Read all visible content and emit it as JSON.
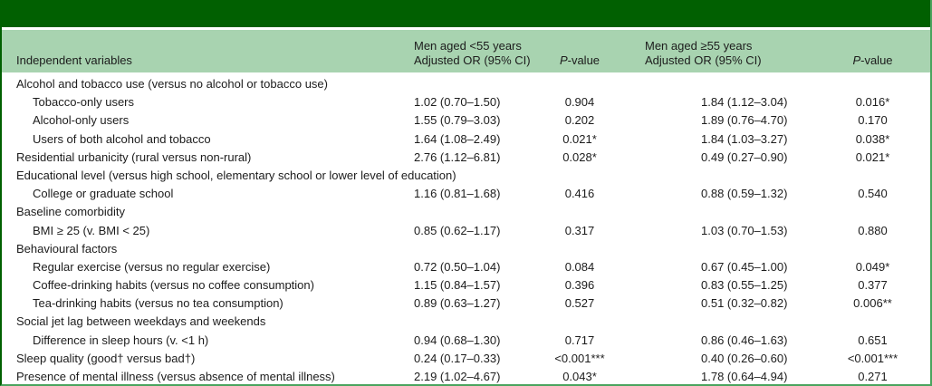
{
  "colors": {
    "dark_green": "#016001",
    "light_green": "#a8d3b0",
    "mid_green": "#4aa45e",
    "body_background": "#ffffff",
    "text": "#1c1c1c"
  },
  "table": {
    "header": {
      "independent_variables": "Independent variables",
      "group1_line1": "Men aged <55 years",
      "group1_line2": "Adjusted OR (95% CI)",
      "group2_line1": "Men aged ≥55 years",
      "group2_line2": "Adjusted OR (95% CI)",
      "pvalue_italic": "P",
      "pvalue_rest": "-value"
    },
    "rows": [
      {
        "label": "Alcohol and tobacco use (versus no alcohol or tobacco use)",
        "indent": false,
        "or1": "",
        "p1": "",
        "or2": "",
        "p2": ""
      },
      {
        "label": "Tobacco-only users",
        "indent": true,
        "or1": "1.02 (0.70–1.50)",
        "p1": "0.904",
        "or2": "1.84 (1.12–3.04)",
        "p2": "0.016*"
      },
      {
        "label": "Alcohol-only users",
        "indent": true,
        "or1": "1.55 (0.79–3.03)",
        "p1": "0.202",
        "or2": "1.89 (0.76–4.70)",
        "p2": "0.170"
      },
      {
        "label": "Users of both alcohol and tobacco",
        "indent": true,
        "or1": "1.64 (1.08–2.49)",
        "p1": "0.021*",
        "or2": "1.84 (1.03–3.27)",
        "p2": "0.038*"
      },
      {
        "label": "Residential urbanicity (rural versus non-rural)",
        "indent": false,
        "or1": "2.76 (1.12–6.81)",
        "p1": "0.028*",
        "or2": "0.49 (0.27–0.90)",
        "p2": "0.021*"
      },
      {
        "label": "Educational level (versus high school, elementary school or lower level of education)",
        "indent": false,
        "or1": "",
        "p1": "",
        "or2": "",
        "p2": ""
      },
      {
        "label": "College or graduate school",
        "indent": true,
        "or1": "1.16 (0.81–1.68)",
        "p1": "0.416",
        "or2": "0.88 (0.59–1.32)",
        "p2": "0.540"
      },
      {
        "label": "Baseline comorbidity",
        "indent": false,
        "or1": "",
        "p1": "",
        "or2": "",
        "p2": ""
      },
      {
        "label": "BMI ≥ 25 (v. BMI < 25)",
        "indent": true,
        "or1": "0.85 (0.62–1.17)",
        "p1": "0.317",
        "or2": "1.03 (0.70–1.53)",
        "p2": "0.880"
      },
      {
        "label": "Behavioural factors",
        "indent": false,
        "or1": "",
        "p1": "",
        "or2": "",
        "p2": ""
      },
      {
        "label": "Regular exercise (versus no regular exercise)",
        "indent": true,
        "or1": "0.72 (0.50–1.04)",
        "p1": "0.084",
        "or2": "0.67 (0.45–1.00)",
        "p2": "0.049*"
      },
      {
        "label": "Coffee-drinking habits (versus no coffee consumption)",
        "indent": true,
        "or1": "1.15 (0.84–1.57)",
        "p1": "0.396",
        "or2": "0.83 (0.55–1.25)",
        "p2": "0.377"
      },
      {
        "label": "Tea-drinking habits (versus no tea consumption)",
        "indent": true,
        "or1": "0.89 (0.63–1.27)",
        "p1": "0.527",
        "or2": "0.51 (0.32–0.82)",
        "p2": "0.006**"
      },
      {
        "label": "Social jet lag between weekdays and weekends",
        "indent": false,
        "or1": "",
        "p1": "",
        "or2": "",
        "p2": ""
      },
      {
        "label": "Difference in sleep hours (v. <1 h)",
        "indent": true,
        "or1": "0.94 (0.68–1.30)",
        "p1": "0.717",
        "or2": "0.86 (0.46–1.63)",
        "p2": "0.651"
      },
      {
        "label": "Sleep quality (good† versus bad†)",
        "indent": false,
        "or1": "0.24 (0.17–0.33)",
        "p1": "<0.001***",
        "or2": "0.40 (0.26–0.60)",
        "p2": "<0.001***"
      },
      {
        "label": "Presence of mental illness (versus absence of mental illness)",
        "indent": false,
        "or1": "2.19 (1.02–4.67)",
        "p1": "0.043*",
        "or2": "1.78 (0.64–4.94)",
        "p2": "0.271"
      }
    ]
  }
}
